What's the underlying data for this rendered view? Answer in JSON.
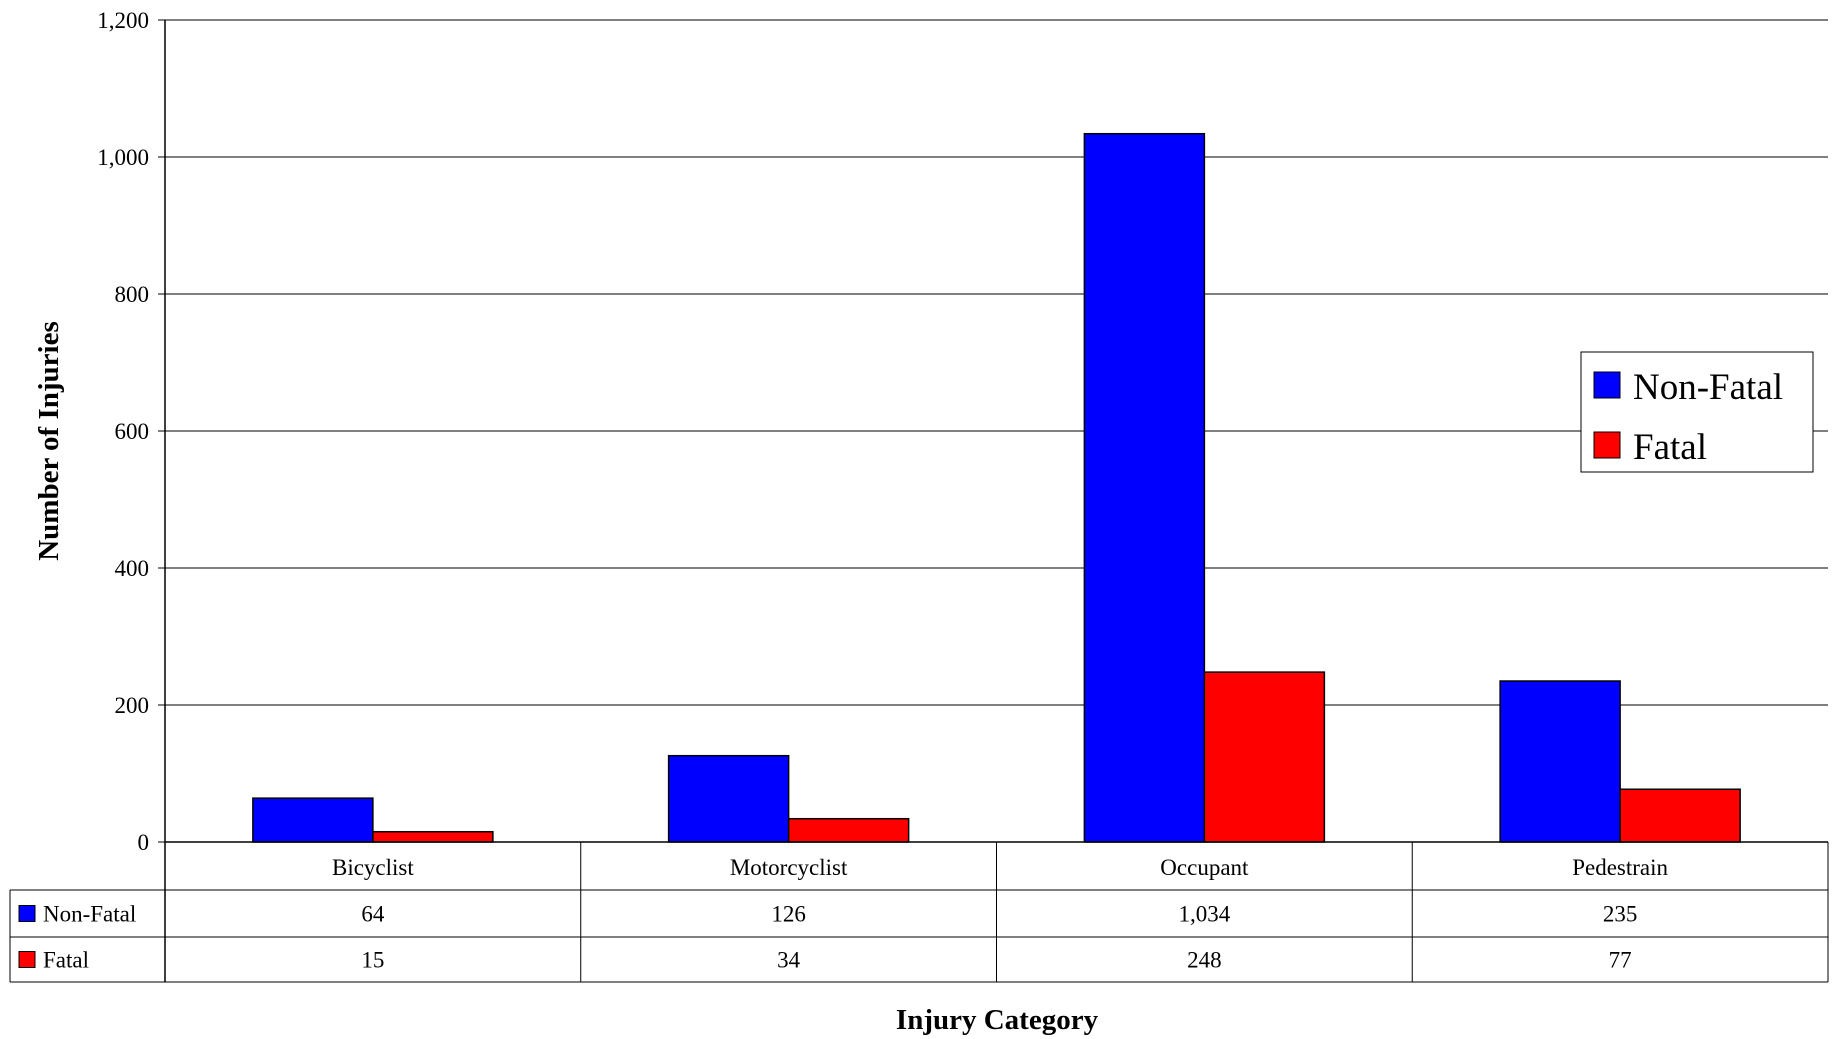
{
  "chart_data": {
    "type": "bar",
    "title": "",
    "xlabel": "Injury Category",
    "ylabel": "Number of Injuries",
    "ylim": [
      0,
      1200
    ],
    "yticks": [
      0,
      200,
      400,
      600,
      800,
      1000,
      1200
    ],
    "ytick_labels": [
      "0",
      "200",
      "400",
      "600",
      "800",
      "1,000",
      "1,200"
    ],
    "grid": true,
    "legend_position": "right",
    "categories": [
      "Bicyclist",
      "Motorcyclist",
      "Occupant",
      "Pedestrain"
    ],
    "series": [
      {
        "name": "Non-Fatal",
        "color": "#0000ff",
        "values": [
          64,
          126,
          1034,
          235
        ],
        "value_labels": [
          "64",
          "126",
          "1,034",
          "235"
        ]
      },
      {
        "name": "Fatal",
        "color": "#ff0000",
        "values": [
          15,
          34,
          248,
          77
        ],
        "value_labels": [
          "15",
          "34",
          "248",
          "77"
        ]
      }
    ],
    "data_table": true
  }
}
